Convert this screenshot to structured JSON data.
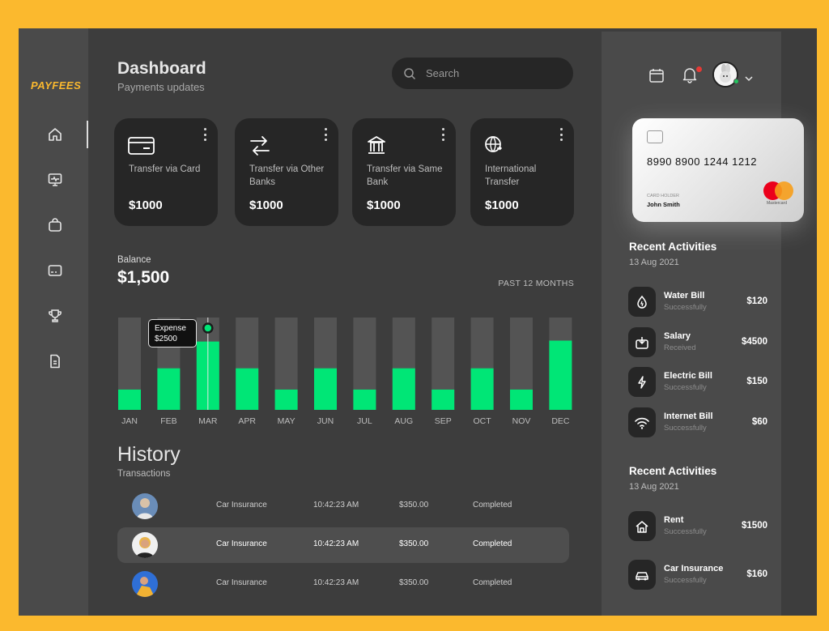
{
  "brand": {
    "logo": "PAYFEES",
    "accent": "#fbb92e"
  },
  "header": {
    "title": "Dashboard",
    "subtitle": "Payments updates",
    "search_placeholder": "Search"
  },
  "sidebar": {
    "items": [
      {
        "icon": "home-icon",
        "active": true
      },
      {
        "icon": "monitor-icon",
        "active": false
      },
      {
        "icon": "bag-icon",
        "active": false
      },
      {
        "icon": "card-icon",
        "active": false
      },
      {
        "icon": "trophy-icon",
        "active": false
      },
      {
        "icon": "document-icon",
        "active": false
      }
    ]
  },
  "cards": [
    {
      "icon": "credit-card-icon",
      "label": "Transfer via Card",
      "amount": "$1000"
    },
    {
      "icon": "arrows-swap-icon",
      "label": "Transfer via Other Banks",
      "amount": "$1000"
    },
    {
      "icon": "bank-icon",
      "label": "Transfer via Same Bank",
      "amount": "$1000"
    },
    {
      "icon": "globe-icon",
      "label": "International Transfer",
      "amount": "$1000"
    }
  ],
  "balance": {
    "label": "Balance",
    "amount": "$1,500",
    "period": "PAST 12 MONTHS"
  },
  "chart_data": {
    "type": "bar",
    "categories": [
      "JAN",
      "FEB",
      "MAR",
      "APR",
      "MAY",
      "JUN",
      "JUL",
      "AUG",
      "SEP",
      "OCT",
      "NOV",
      "DEC"
    ],
    "values": [
      22,
      45,
      74,
      45,
      22,
      45,
      22,
      45,
      22,
      45,
      22,
      75
    ],
    "ylim": [
      0,
      100
    ],
    "highlight": {
      "category": "MAR",
      "label": "Expense",
      "value": "$2500"
    },
    "colors": {
      "bar": "#00e676",
      "track": "#545454"
    }
  },
  "history": {
    "title": "History",
    "subtitle": "Transactions",
    "rows": [
      {
        "type": "Car Insurance",
        "time": "10:42:23 AM",
        "amount": "$350.00",
        "status": "Completed",
        "selected": false
      },
      {
        "type": "Car Insurance",
        "time": "10:42:23 AM",
        "amount": "$350.00",
        "status": "Completed",
        "selected": true
      },
      {
        "type": "Car Insurance",
        "time": "10:42:23 AM",
        "amount": "$350.00",
        "status": "Completed",
        "selected": false
      }
    ]
  },
  "bank_card": {
    "number": "8990 8900 1244 1212",
    "holder_label": "CARD HOLDER",
    "holder_name": "John Smith",
    "network": "Mastercard"
  },
  "activities": [
    {
      "title": "Recent Activities",
      "date": "13 Aug  2021",
      "items": [
        {
          "icon": "water-drop-icon",
          "name": "Water Bill",
          "status": "Successfully",
          "amount": "$120"
        },
        {
          "icon": "salary-icon",
          "name": "Salary",
          "status": "Received",
          "amount": "$4500"
        },
        {
          "icon": "lightning-icon",
          "name": "Electric Bill",
          "status": "Successfully",
          "amount": "$150"
        },
        {
          "icon": "wifi-icon",
          "name": "Internet Bill",
          "status": "Successfully",
          "amount": "$60"
        }
      ]
    },
    {
      "title": "Recent Activities",
      "date": "13 Aug  2021",
      "items": [
        {
          "icon": "house-icon",
          "name": "Rent",
          "status": "Successfully",
          "amount": "$1500"
        },
        {
          "icon": "car-icon",
          "name": "Car Insurance",
          "status": "Successfully",
          "amount": "$160"
        }
      ]
    }
  ]
}
